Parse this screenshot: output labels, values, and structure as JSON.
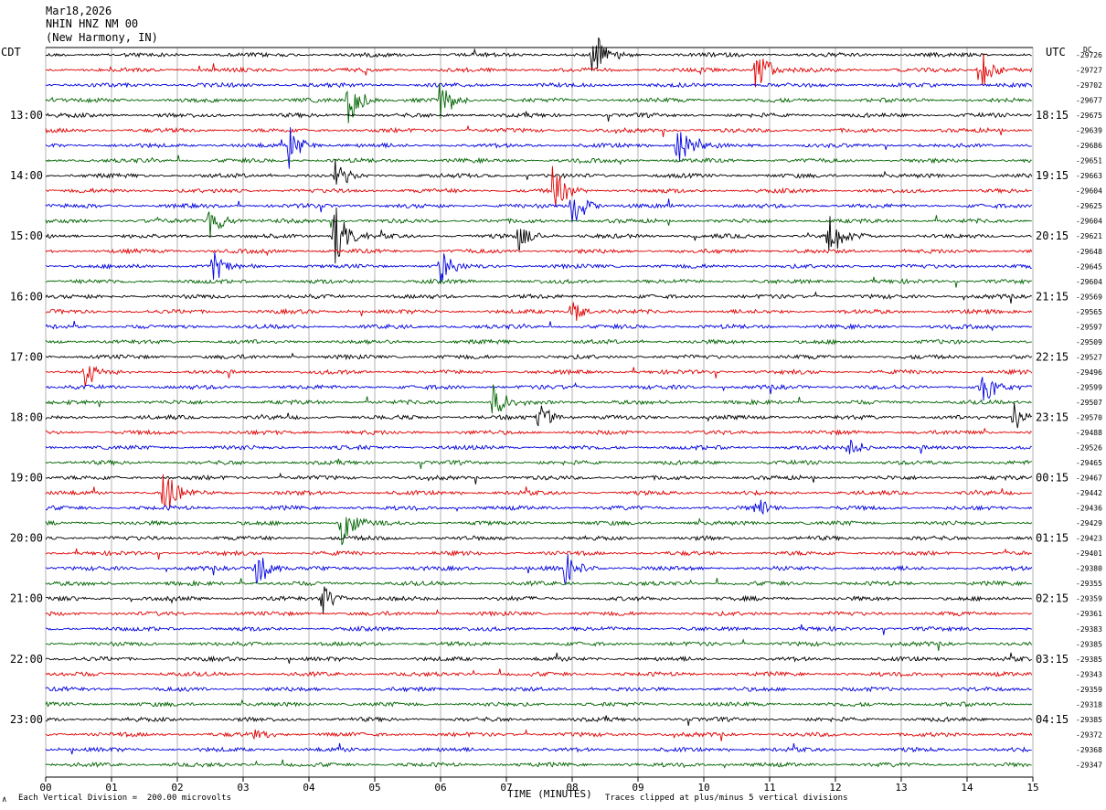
{
  "header": {
    "date": "Mar18,2026",
    "station": "NHIN HNZ NM 00",
    "location": "(New Harmony, IN)",
    "left_tz": "CDT",
    "right_tz": "UTC",
    "dc_label": "DC"
  },
  "footer": {
    "scale": "Each Vertical Division =  200.00 microvolts",
    "xlabel": "TIME (MINUTES)",
    "clip": "Traces clipped at plus/minus 5 vertical divisions",
    "mark": "∧"
  },
  "chart_data": {
    "type": "line",
    "title": "NHIN HNZ NM 00",
    "xlabel": "TIME (MINUTES)",
    "ylabel": "",
    "xlim": [
      0,
      15
    ],
    "x_ticks": [
      "00",
      "01",
      "02",
      "03",
      "04",
      "05",
      "06",
      "07",
      "08",
      "09",
      "10",
      "11",
      "12",
      "13",
      "14",
      "15"
    ],
    "trace_colors": [
      "#000000",
      "#e00000",
      "#0000e0",
      "#006400"
    ],
    "left_hour_labels": [
      "13:00",
      "14:00",
      "15:00",
      "16:00",
      "17:00",
      "18:00",
      "19:00",
      "20:00",
      "21:00",
      "22:00",
      "23:00"
    ],
    "right_hour_labels": [
      "18:15",
      "19:15",
      "20:15",
      "21:15",
      "22:15",
      "23:15",
      "00:15",
      "01:15",
      "02:15",
      "03:15",
      "04:15"
    ],
    "dc_offsets": [
      "-29726",
      "-29727",
      "-29702",
      "-29677",
      "-29675",
      "-29639",
      "-29686",
      "-29651",
      "-29663",
      "-29604",
      "-29625",
      "-29604",
      "-29621",
      "-29648",
      "-29645",
      "-29604",
      "-29569",
      "-29565",
      "-29597",
      "-29509",
      "-29527",
      "-29496",
      "-29599",
      "-29507",
      "-29570",
      "-29488",
      "-29526",
      "-29465",
      "-29467",
      "-29442",
      "-29436",
      "-29429",
      "-29423",
      "-29401",
      "-29380",
      "-29355",
      "-29359",
      "-29361",
      "-29383",
      "-29385",
      "-29385",
      "-29343",
      "-29359",
      "-29318",
      "-29385",
      "-29372",
      "-29368",
      "-29347"
    ],
    "events": [
      {
        "row": 0,
        "minute": 8.3,
        "amp": 1.6
      },
      {
        "row": 1,
        "minute": 10.8,
        "amp": 1.5
      },
      {
        "row": 1,
        "minute": 14.2,
        "amp": 1.3
      },
      {
        "row": 3,
        "minute": 4.6,
        "amp": 1.5
      },
      {
        "row": 3,
        "minute": 6.0,
        "amp": 1.2
      },
      {
        "row": 6,
        "minute": 3.7,
        "amp": 1.3
      },
      {
        "row": 6,
        "minute": 9.6,
        "amp": 1.3
      },
      {
        "row": 8,
        "minute": 4.4,
        "amp": 1.0
      },
      {
        "row": 9,
        "minute": 7.7,
        "amp": 1.5
      },
      {
        "row": 10,
        "minute": 8.0,
        "amp": 1.4
      },
      {
        "row": 11,
        "minute": 2.5,
        "amp": 1.0
      },
      {
        "row": 12,
        "minute": 4.4,
        "amp": 1.7
      },
      {
        "row": 12,
        "minute": 11.9,
        "amp": 1.6
      },
      {
        "row": 12,
        "minute": 7.2,
        "amp": 0.9
      },
      {
        "row": 14,
        "minute": 2.55,
        "amp": 1.0
      },
      {
        "row": 14,
        "minute": 6.0,
        "amp": 1.1
      },
      {
        "row": 17,
        "minute": 8.0,
        "amp": 0.8
      },
      {
        "row": 21,
        "minute": 0.6,
        "amp": 0.9
      },
      {
        "row": 22,
        "minute": 14.2,
        "amp": 1.3
      },
      {
        "row": 23,
        "minute": 6.8,
        "amp": 1.1
      },
      {
        "row": 24,
        "minute": 7.5,
        "amp": 0.9
      },
      {
        "row": 24,
        "minute": 14.7,
        "amp": 1.0
      },
      {
        "row": 26,
        "minute": 12.2,
        "amp": 0.7
      },
      {
        "row": 29,
        "minute": 1.8,
        "amp": 1.8
      },
      {
        "row": 31,
        "minute": 4.5,
        "amp": 1.4
      },
      {
        "row": 30,
        "minute": 10.8,
        "amp": 0.7
      },
      {
        "row": 34,
        "minute": 3.2,
        "amp": 1.6
      },
      {
        "row": 34,
        "minute": 7.9,
        "amp": 1.3
      },
      {
        "row": 36,
        "minute": 4.2,
        "amp": 0.9
      },
      {
        "row": 45,
        "minute": 3.2,
        "amp": 0.4
      }
    ]
  }
}
